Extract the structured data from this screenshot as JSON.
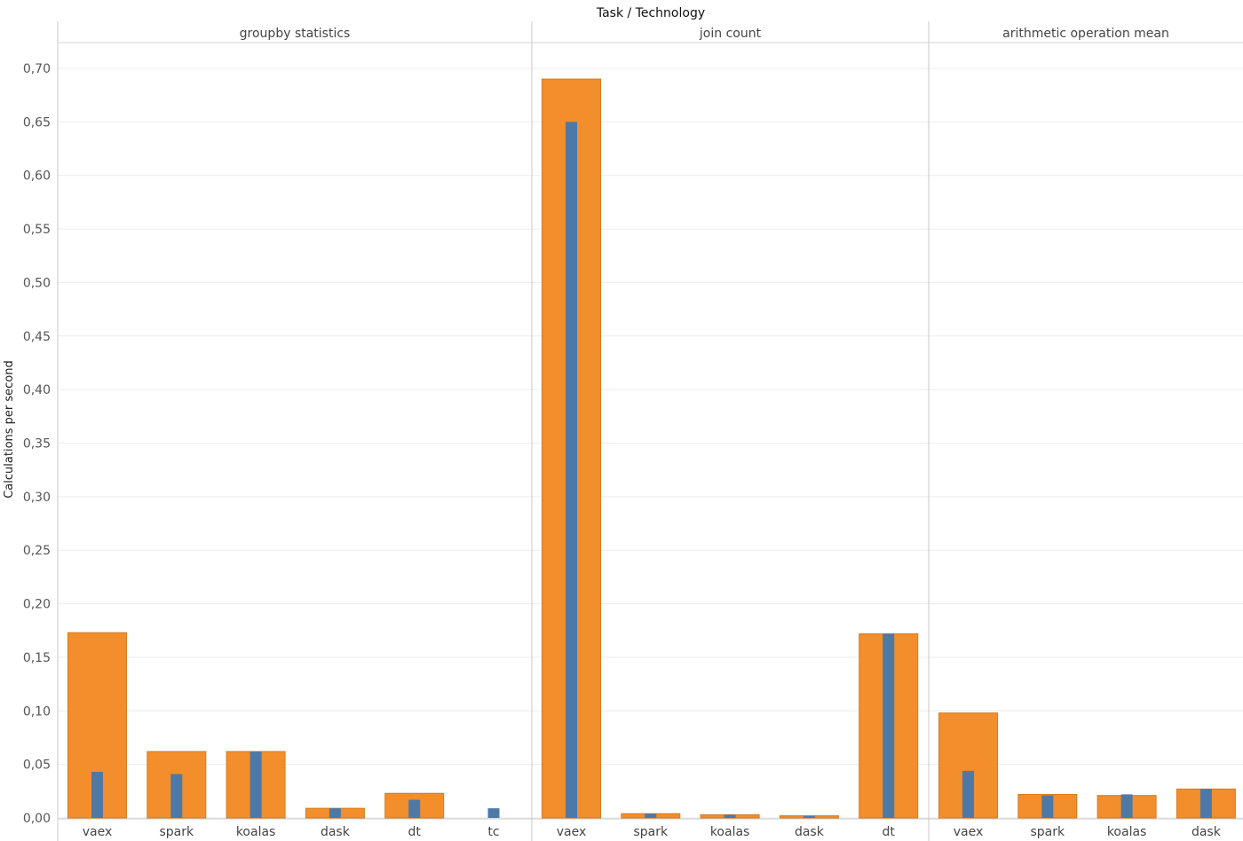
{
  "chart_data": {
    "type": "bar",
    "title": "Task / Technology",
    "ylabel": "Calculations per second",
    "ylim": [
      0,
      0.7
    ],
    "yticks": [
      "0,00",
      "0,05",
      "0,10",
      "0,15",
      "0,20",
      "0,25",
      "0,30",
      "0,35",
      "0,40",
      "0,45",
      "0,50",
      "0,55",
      "0,60",
      "0,65",
      "0,70"
    ],
    "grid": true,
    "colors": {
      "wide": "#f28e2b",
      "narrow": "#4e79a7"
    },
    "panels": [
      {
        "name": "groupby statistics",
        "categories": [
          "vaex",
          "spark",
          "koalas",
          "dask",
          "dt",
          "tc"
        ],
        "series": [
          {
            "values": [
              0.173,
              0.062,
              0.062,
              0.009,
              0.023,
              null
            ]
          },
          {
            "values": [
              0.043,
              0.041,
              0.062,
              0.009,
              0.017,
              0.009
            ]
          }
        ]
      },
      {
        "name": "join count",
        "categories": [
          "vaex",
          "spark",
          "koalas",
          "dask",
          "dt"
        ],
        "series": [
          {
            "values": [
              0.69,
              0.004,
              0.003,
              0.002,
              0.172
            ]
          },
          {
            "values": [
              0.65,
              0.004,
              0.003,
              0.002,
              0.172
            ]
          }
        ]
      },
      {
        "name": "arithmetic operation mean",
        "categories": [
          "vaex",
          "spark",
          "koalas",
          "dask"
        ],
        "series": [
          {
            "values": [
              0.098,
              0.022,
              0.021,
              0.027
            ]
          },
          {
            "values": [
              0.044,
              0.021,
              0.022,
              0.027
            ]
          }
        ]
      }
    ]
  }
}
